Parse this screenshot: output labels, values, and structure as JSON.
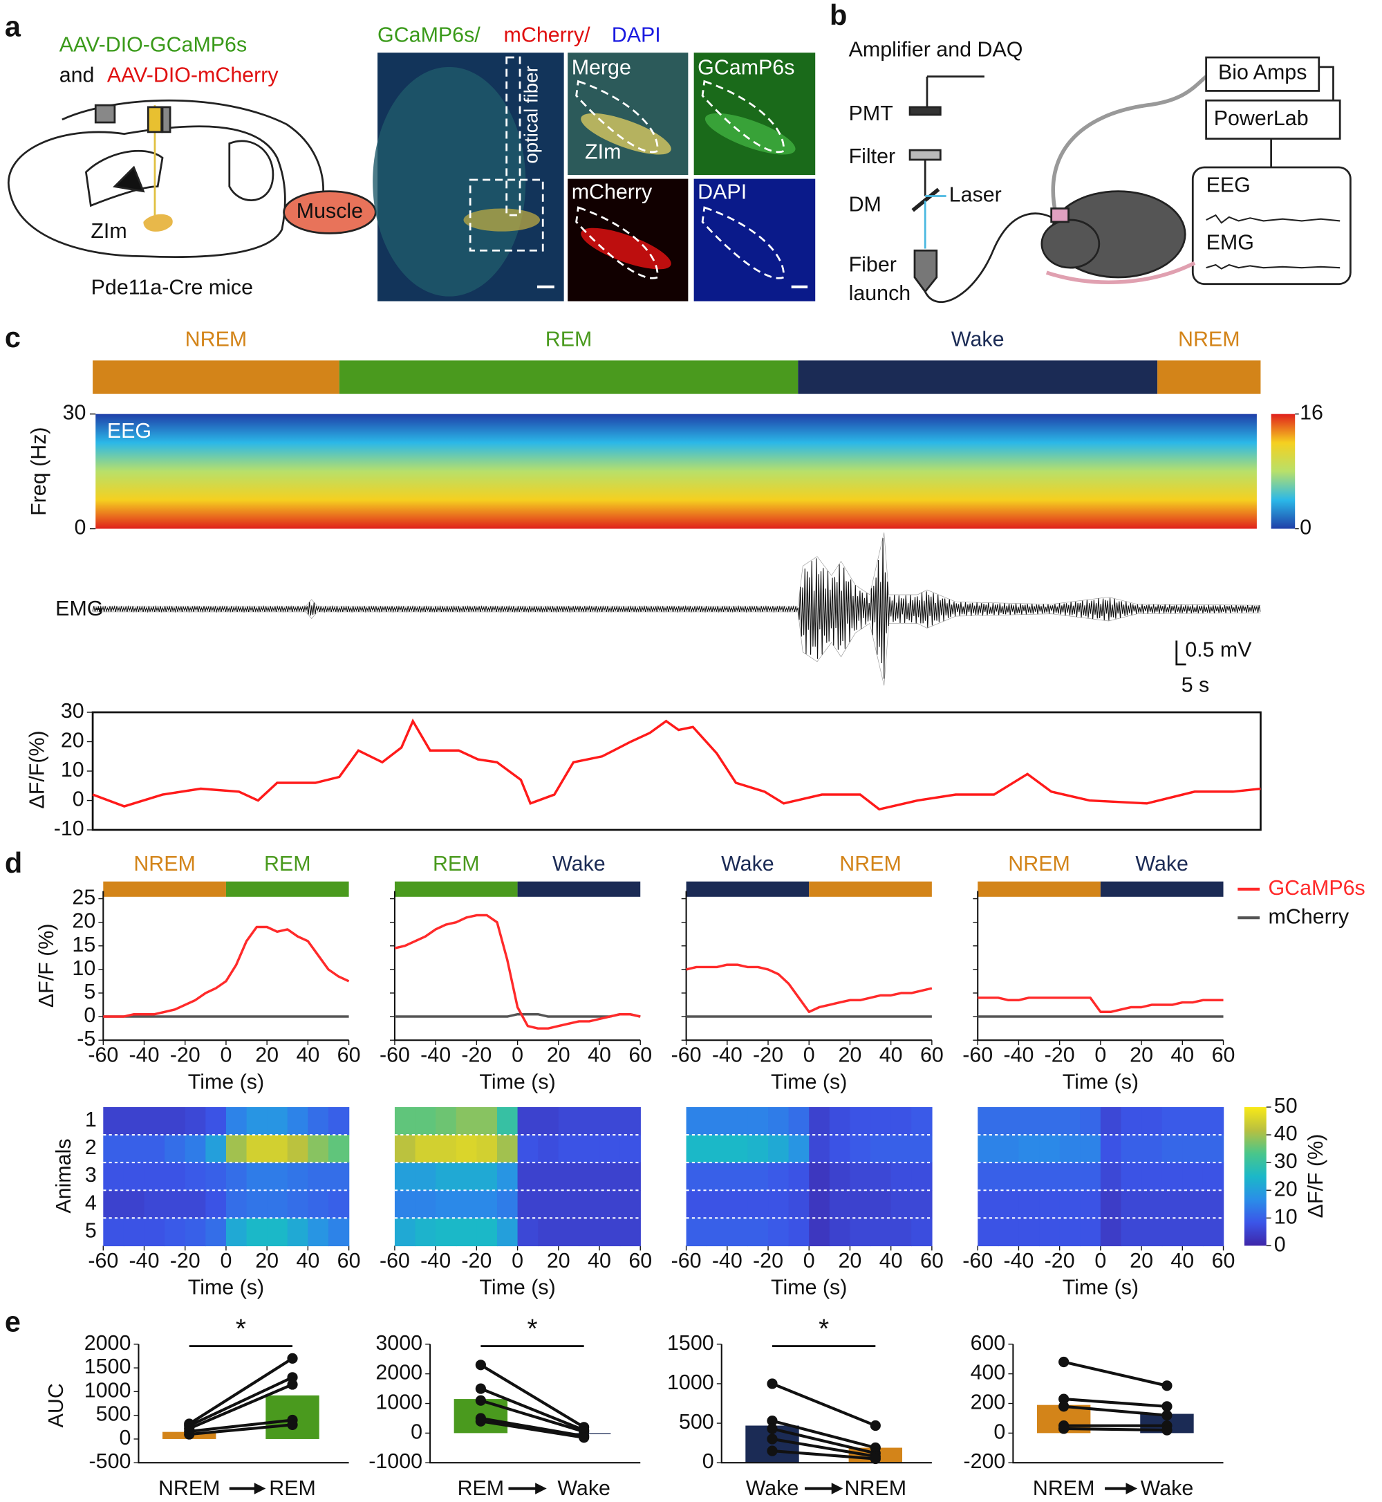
{
  "panel_labels": [
    "a",
    "b",
    "c",
    "d",
    "e"
  ],
  "stage_colors": {
    "NREM": "#d38419",
    "REM": "#4a9a1e",
    "Wake": "#1b2b55"
  },
  "panel_a": {
    "virus_1": "AAV-DIO-GCaMP6s",
    "virus_and": "and",
    "virus_2": "AAV-DIO-mCherry",
    "region": "ZIm",
    "muscle": "Muscle",
    "mice": "Pde11a-Cre mice",
    "stain_1": "GCaMP6s/",
    "stain_2": "mCherry/",
    "stain_3": "DAPI",
    "fiber": "optical fiber",
    "insets": [
      "Merge",
      "GCamP6s",
      "mCherry",
      "DAPI"
    ],
    "inset_region": "ZIm"
  },
  "panel_b": {
    "daq": "Amplifier and DAQ",
    "pmt": "PMT",
    "filter": "Filter",
    "dm": "DM",
    "laser": "Laser",
    "fiber_1": "Fiber",
    "fiber_2": "launch",
    "bio_amps": "Bio Amps",
    "powerlab": "PowerLab",
    "eeg": "EEG",
    "emg": "EMG"
  },
  "panel_c": {
    "stages": [
      {
        "name": "NREM",
        "duration": 129
      },
      {
        "name": "REM",
        "duration": 240
      },
      {
        "name": "Wake",
        "duration": 188
      },
      {
        "name": "NREM",
        "duration": 54
      }
    ],
    "spectrogram": {
      "label": "EEG",
      "ylabel": "Freq (Hz)",
      "ylim": [
        0,
        30
      ],
      "yticks": [
        0,
        30
      ],
      "colorbar_lim": [
        0,
        16
      ],
      "colorbar_ticks": [
        0,
        16
      ],
      "colormap": [
        "#1f3fa8",
        "#2bb8e8",
        "#b8e06a",
        "#f5d020",
        "#e0201c"
      ]
    },
    "emg": {
      "label": "EMG",
      "t": [
        0,
        111.5,
        114.5,
        117.5,
        369,
        371.5,
        379,
        386.5,
        391.5,
        399,
        406.5,
        414,
        416.5,
        431.5,
        436.5,
        451.5,
        501.5,
        531.5,
        546.5,
        611
      ],
      "envelope": [
        0.06,
        0.06,
        0.2,
        0.06,
        0.06,
        0.9,
        1.1,
        0.7,
        1.0,
        0.5,
        0.3,
        1.6,
        0.3,
        0.3,
        0.4,
        0.15,
        0.1,
        0.25,
        0.1,
        0.08
      ]
    },
    "scale_bar": {
      "amplitude": 0.5,
      "amplitude_label": "0.5 mV",
      "time": 5,
      "time_label": "5 s"
    },
    "trace": {
      "ylabel": "ΔF/F(%)",
      "ylim": [
        -10,
        30
      ],
      "yticks": [
        -10,
        0,
        10,
        20,
        30
      ],
      "color": "#ff1a1a",
      "t": [
        0,
        16.5,
        36.5,
        56.5,
        76.5,
        86.5,
        96.5,
        116.5,
        129,
        139,
        151.5,
        161.5,
        167.5,
        176.5,
        191.5,
        201.5,
        211.5,
        224,
        229,
        241.5,
        251.5,
        266.5,
        281.5,
        291.5,
        300,
        306.5,
        314,
        326.5,
        336.5,
        351.5,
        361.5,
        381.5,
        401.5,
        411.5,
        431.5,
        451.5,
        471.5,
        489,
        501.5,
        521.5,
        551.5,
        576.5,
        596.5,
        611
      ],
      "values": [
        2,
        -2,
        2,
        4,
        3,
        0,
        6,
        6,
        8,
        17,
        13,
        18,
        27,
        17,
        17,
        14,
        13,
        7,
        -1,
        2,
        13,
        15,
        20,
        23,
        27,
        24,
        25,
        16,
        6,
        3,
        -1,
        2,
        2,
        -3,
        0,
        2,
        2,
        9,
        3,
        0,
        -1,
        3,
        3,
        4
      ]
    }
  },
  "panel_d": {
    "ylabel": "ΔF/F (%)",
    "xlabel": "Time (s)",
    "xlim": [
      -60,
      60
    ],
    "xticks": [
      -60,
      -40,
      -20,
      0,
      20,
      40,
      60
    ],
    "ylim": [
      -5,
      25
    ],
    "yticks": [
      -5,
      0,
      5,
      10,
      15,
      20,
      25
    ],
    "series": [
      {
        "name": "GCaMP6s",
        "color": "#ff2a2a"
      },
      {
        "name": "mCherry",
        "color": "#555555"
      }
    ],
    "x": [
      -60,
      -55,
      -50,
      -45,
      -40,
      -35,
      -30,
      -25,
      -20,
      -15,
      -10,
      -5,
      0,
      5,
      10,
      15,
      20,
      25,
      30,
      35,
      40,
      45,
      50,
      55,
      60
    ],
    "plots": [
      {
        "stages": [
          "NREM",
          "REM"
        ],
        "values": [
          [
            0,
            0,
            0,
            0.5,
            0.5,
            0.5,
            1,
            1.5,
            2.5,
            3.5,
            5,
            6,
            7.5,
            11,
            16,
            19,
            19,
            18,
            18.5,
            17,
            16,
            13,
            10,
            8.5,
            7.5
          ],
          [
            0,
            0,
            0,
            0,
            0,
            0,
            0,
            0,
            0,
            0,
            0,
            0,
            0,
            0,
            0,
            0,
            0,
            0,
            0,
            0,
            0,
            0,
            0,
            0,
            0
          ]
        ]
      },
      {
        "stages": [
          "REM",
          "Wake"
        ],
        "values": [
          [
            14.5,
            15,
            16,
            17,
            18.5,
            19.5,
            20,
            21,
            21.5,
            21.5,
            20,
            12,
            2,
            -2,
            -2.5,
            -2.5,
            -2,
            -1.5,
            -1,
            -1,
            -0.5,
            0,
            0.5,
            0.5,
            0
          ],
          [
            0,
            0,
            0,
            0,
            0,
            0,
            0,
            0,
            0,
            0,
            0,
            0,
            0.5,
            0.5,
            0.5,
            0,
            0,
            0,
            0,
            0,
            0,
            0,
            0.5,
            0.5,
            0
          ]
        ]
      },
      {
        "stages": [
          "Wake",
          "NREM"
        ],
        "values": [
          [
            10,
            10.5,
            10.5,
            10.5,
            11,
            11,
            10.5,
            10.5,
            10,
            9,
            7,
            4,
            1,
            2,
            2.5,
            3,
            3.5,
            3.5,
            4,
            4.5,
            4.5,
            5,
            5,
            5.5,
            6
          ],
          [
            0,
            0,
            0,
            0,
            0,
            0,
            0,
            0,
            0,
            0,
            0,
            0,
            0,
            0,
            0,
            0,
            0,
            0,
            0,
            0,
            0,
            0,
            0,
            0,
            0
          ]
        ]
      },
      {
        "stages": [
          "NREM",
          "Wake"
        ],
        "values": [
          [
            4,
            4,
            4,
            3.5,
            3.5,
            4,
            4,
            4,
            4,
            4,
            4,
            4,
            1,
            1,
            1.5,
            2,
            2,
            2.5,
            2.5,
            2.5,
            3,
            3,
            3.5,
            3.5,
            3.5
          ],
          [
            0,
            0,
            0,
            0,
            0,
            0,
            0,
            0,
            0,
            0,
            0,
            0,
            0,
            0,
            0,
            0,
            0,
            0,
            0,
            0,
            0,
            0,
            0,
            0,
            0
          ]
        ]
      }
    ],
    "heatmap": {
      "ylabel": "Animals",
      "animals": [
        "1",
        "2",
        "3",
        "4",
        "5"
      ],
      "bins": [
        -60,
        -50,
        -40,
        -30,
        -20,
        -10,
        0,
        10,
        20,
        30,
        40,
        50,
        60
      ],
      "colorbar_label": "ΔF/F (%)",
      "clim": [
        0,
        50
      ],
      "cticks": [
        0,
        10,
        20,
        30,
        40,
        50
      ],
      "colormap": [
        "#3e26a8",
        "#3b55e8",
        "#2a8ee8",
        "#1bb8c8",
        "#4ac68a",
        "#b8c040",
        "#f9e917"
      ],
      "plots": [
        [
          [
            5,
            5,
            5,
            5,
            6,
            8,
            15,
            18,
            18,
            15,
            12,
            10
          ],
          [
            10,
            10,
            10,
            12,
            14,
            20,
            40,
            45,
            45,
            42,
            38,
            35
          ],
          [
            8,
            8,
            8,
            8,
            9,
            10,
            12,
            14,
            14,
            13,
            12,
            12
          ],
          [
            5,
            5,
            6,
            6,
            6,
            8,
            12,
            13,
            13,
            12,
            11,
            10
          ],
          [
            8,
            8,
            8,
            9,
            10,
            12,
            22,
            25,
            25,
            22,
            18,
            15
          ]
        ],
        [
          [
            35,
            35,
            36,
            38,
            38,
            30,
            5,
            5,
            6,
            6,
            6,
            6
          ],
          [
            42,
            45,
            45,
            46,
            45,
            40,
            8,
            7,
            8,
            8,
            8,
            8
          ],
          [
            20,
            20,
            22,
            22,
            22,
            18,
            5,
            5,
            5,
            5,
            5,
            5
          ],
          [
            15,
            15,
            16,
            16,
            16,
            14,
            5,
            5,
            5,
            5,
            5,
            5
          ],
          [
            22,
            24,
            25,
            25,
            25,
            20,
            6,
            5,
            5,
            5,
            5,
            5
          ]
        ],
        [
          [
            15,
            15,
            15,
            15,
            14,
            12,
            5,
            7,
            8,
            8,
            8,
            9
          ],
          [
            25,
            25,
            25,
            24,
            22,
            18,
            6,
            8,
            9,
            10,
            10,
            10
          ],
          [
            10,
            10,
            10,
            10,
            9,
            8,
            3,
            5,
            6,
            6,
            7,
            7
          ],
          [
            8,
            8,
            8,
            8,
            8,
            7,
            3,
            5,
            5,
            5,
            6,
            6
          ],
          [
            10,
            10,
            10,
            10,
            9,
            8,
            3,
            5,
            6,
            6,
            6,
            7
          ]
        ],
        [
          [
            12,
            12,
            12,
            12,
            12,
            11,
            6,
            8,
            8,
            9,
            9,
            9
          ],
          [
            15,
            15,
            16,
            16,
            15,
            15,
            8,
            10,
            10,
            11,
            11,
            11
          ],
          [
            10,
            10,
            10,
            10,
            10,
            10,
            6,
            8,
            8,
            8,
            8,
            8
          ],
          [
            8,
            8,
            8,
            8,
            8,
            8,
            4,
            6,
            6,
            6,
            6,
            6
          ],
          [
            8,
            8,
            8,
            8,
            8,
            8,
            4,
            6,
            6,
            6,
            6,
            6
          ]
        ]
      ]
    }
  },
  "panel_e": {
    "ylabel": "AUC",
    "plots": [
      {
        "categories": [
          "NREM",
          "REM"
        ],
        "ylim": [
          -500,
          2000
        ],
        "yticks": [
          -500,
          0,
          500,
          1000,
          1500,
          2000
        ],
        "means": [
          150,
          920
        ],
        "before": [
          320,
          280,
          220,
          160,
          100
        ],
        "after": [
          1700,
          1300,
          1150,
          400,
          300
        ],
        "significance": "*"
      },
      {
        "categories": [
          "REM",
          "Wake"
        ],
        "ylim": [
          -1000,
          3000
        ],
        "yticks": [
          -1000,
          0,
          1000,
          2000,
          3000
        ],
        "means": [
          1150,
          -30
        ],
        "before": [
          2300,
          1500,
          1100,
          500,
          400
        ],
        "after": [
          200,
          100,
          50,
          -100,
          -150
        ],
        "significance": "*"
      },
      {
        "categories": [
          "Wake",
          "NREM"
        ],
        "ylim": [
          0,
          1500
        ],
        "yticks": [
          0,
          500,
          1000,
          1500
        ],
        "means": [
          470,
          190
        ],
        "before": [
          1000,
          530,
          430,
          300,
          150
        ],
        "after": [
          470,
          190,
          120,
          80,
          50
        ],
        "significance": "*"
      },
      {
        "categories": [
          "NREM",
          "Wake"
        ],
        "ylim": [
          -200,
          600
        ],
        "yticks": [
          -200,
          0,
          200,
          400,
          600
        ],
        "means": [
          190,
          130
        ],
        "before": [
          480,
          230,
          180,
          50,
          30
        ],
        "after": [
          320,
          180,
          120,
          50,
          20
        ]
      }
    ]
  }
}
